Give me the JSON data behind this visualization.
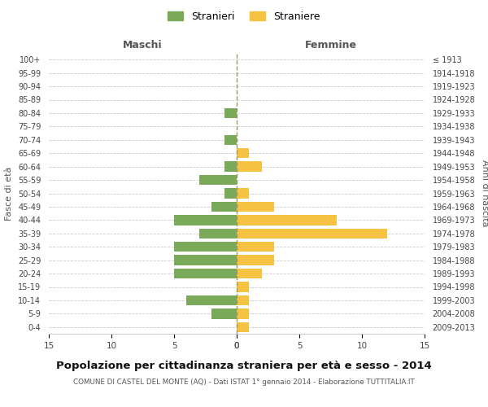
{
  "age_groups": [
    "0-4",
    "5-9",
    "10-14",
    "15-19",
    "20-24",
    "25-29",
    "30-34",
    "35-39",
    "40-44",
    "45-49",
    "50-54",
    "55-59",
    "60-64",
    "65-69",
    "70-74",
    "75-79",
    "80-84",
    "85-89",
    "90-94",
    "95-99",
    "100+"
  ],
  "birth_years": [
    "2009-2013",
    "2004-2008",
    "1999-2003",
    "1994-1998",
    "1989-1993",
    "1984-1988",
    "1979-1983",
    "1974-1978",
    "1969-1973",
    "1964-1968",
    "1959-1963",
    "1954-1958",
    "1949-1953",
    "1944-1948",
    "1939-1943",
    "1934-1938",
    "1929-1933",
    "1924-1928",
    "1919-1923",
    "1914-1918",
    "≤ 1913"
  ],
  "maschi": [
    0,
    2,
    4,
    0,
    5,
    5,
    5,
    3,
    5,
    2,
    1,
    3,
    1,
    0,
    1,
    0,
    1,
    0,
    0,
    0,
    0
  ],
  "femmine": [
    1,
    1,
    1,
    1,
    2,
    3,
    3,
    12,
    8,
    3,
    1,
    0,
    2,
    1,
    0,
    0,
    0,
    0,
    0,
    0,
    0
  ],
  "male_color": "#7aaa59",
  "female_color": "#f5c242",
  "background_color": "#ffffff",
  "grid_color": "#cccccc",
  "center_line_color": "#999966",
  "title": "Popolazione per cittadinanza straniera per età e sesso - 2014",
  "subtitle": "COMUNE DI CASTEL DEL MONTE (AQ) - Dati ISTAT 1° gennaio 2014 - Elaborazione TUTTITALIA.IT",
  "xlabel_left": "Maschi",
  "xlabel_right": "Femmine",
  "ylabel_left": "Fasce di età",
  "ylabel_right": "Anni di nascita",
  "legend_maschi": "Stranieri",
  "legend_femmine": "Straniere",
  "xlim": 15
}
